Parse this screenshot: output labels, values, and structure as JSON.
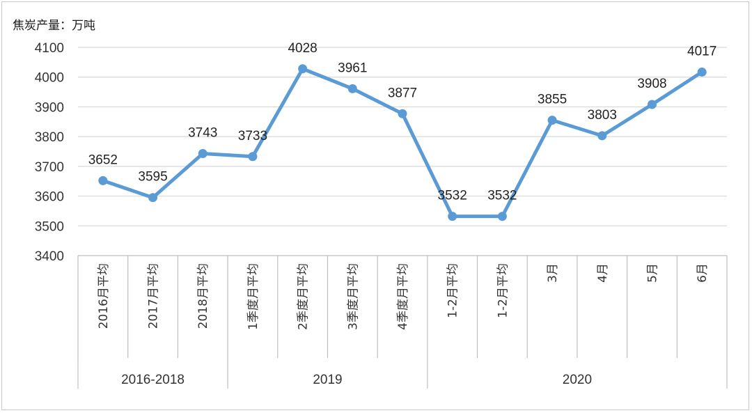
{
  "chart_data": {
    "type": "line",
    "ylabel": "焦炭产量：万吨",
    "xlabel": "",
    "ylim": [
      3400,
      4100
    ],
    "yticks": [
      3400,
      3500,
      3600,
      3700,
      3800,
      3900,
      4000,
      4100
    ],
    "grid": true,
    "categories": [
      "2016月平均",
      "2017月平均",
      "2018月平均",
      "1季度月平均",
      "2季度月平均",
      "3季度月平均",
      "4季度月平均",
      "1-2月平均",
      "1-2月平均",
      "3月",
      "4月",
      "5月",
      "6月"
    ],
    "groups": [
      {
        "label": "2016-2018",
        "count": 3
      },
      {
        "label": "2019",
        "count": 4
      },
      {
        "label": "2020",
        "count": 6
      }
    ],
    "series": [
      {
        "values": [
          3652,
          3595,
          3743,
          3733,
          4028,
          3961,
          3877,
          3532,
          3532,
          3855,
          3803,
          3908,
          4017
        ]
      }
    ],
    "data_labels": [
      "3652",
      "3595",
      "3743",
      "3733",
      "4028",
      "3961",
      "3877",
      "3532",
      "3532",
      "3855",
      "3803",
      "3908",
      "4017"
    ],
    "colors": {
      "line": "#5b9bd5",
      "grid": "#d9d9d9",
      "axis": "#bfbfbf"
    }
  }
}
